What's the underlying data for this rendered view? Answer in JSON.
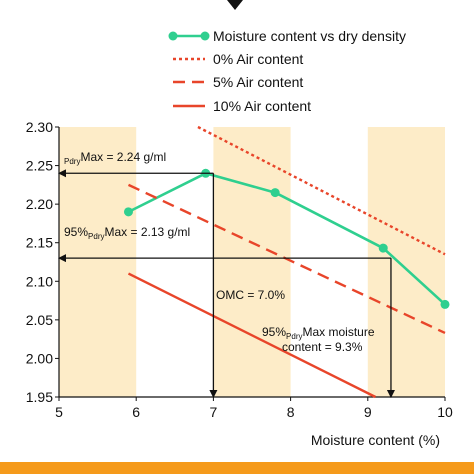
{
  "chart_data": {
    "type": "line",
    "xlabel": "Moisture content (%)",
    "ylabel": "",
    "xlim": [
      5,
      10
    ],
    "ylim": [
      1.95,
      2.3
    ],
    "x_ticks": [
      "5",
      "6",
      "7",
      "8",
      "9",
      "10"
    ],
    "y_ticks": [
      "2.30",
      "2.25",
      "2.20",
      "2.15",
      "2.10",
      "2.05",
      "2.00",
      "1.95"
    ],
    "grid": false,
    "legend_position": "top-right",
    "background_bands": {
      "color": "#fdecc8",
      "x_ranges": [
        [
          5,
          6
        ],
        [
          7,
          8
        ],
        [
          9,
          10
        ]
      ]
    },
    "series": [
      {
        "name": "Moisture content vs dry density",
        "style": "solid-markers",
        "color": "#2fcf8f",
        "x": [
          5.9,
          6.9,
          7.8,
          9.2,
          10.0
        ],
        "y": [
          2.19,
          2.24,
          2.215,
          2.143,
          2.07
        ]
      },
      {
        "name": "0% Air content",
        "style": "dotted",
        "color": "#e8452a",
        "x": [
          6.8,
          10.0
        ],
        "y": [
          2.3,
          2.135
        ]
      },
      {
        "name": "5% Air content",
        "style": "dashed",
        "color": "#e8452a",
        "x": [
          5.9,
          10.0
        ],
        "y": [
          2.225,
          2.033
        ]
      },
      {
        "name": "10% Air content",
        "style": "solid",
        "color": "#e8452a",
        "x": [
          5.9,
          9.1
        ],
        "y": [
          2.11,
          1.95
        ]
      }
    ],
    "guides": [
      {
        "from": [
          7.0,
          2.24
        ],
        "to": [
          5.0,
          2.24
        ],
        "arrow": "end"
      },
      {
        "from": [
          7.0,
          2.24
        ],
        "to": [
          7.0,
          1.95
        ],
        "arrow": "end"
      },
      {
        "from": [
          9.3,
          2.13
        ],
        "to": [
          5.0,
          2.13
        ],
        "arrow": "end"
      },
      {
        "from": [
          9.3,
          2.13
        ],
        "to": [
          9.3,
          1.95
        ],
        "arrow": "end"
      }
    ],
    "annotations": {
      "max_dry_density": {
        "prefix": "",
        "sub": "Pdry",
        "suffix": "Max = 2.24 g/ml"
      },
      "ninety_five_max": {
        "prefix": "95%",
        "sub": "Pdry",
        "suffix": "Max = 2.13 g/ml"
      },
      "omc": "OMC = 7.0%",
      "ninety_five_moisture_line1": {
        "prefix": "95%",
        "sub": "Pdry",
        "suffix": "Max moisture"
      },
      "ninety_five_moisture_line2": "content = 9.3%"
    }
  },
  "colors": {
    "accent_green": "#2fcf8f",
    "air_lines": "#e8452a",
    "band": "#fdecc8",
    "bottom_bar": "#f59a1b"
  }
}
